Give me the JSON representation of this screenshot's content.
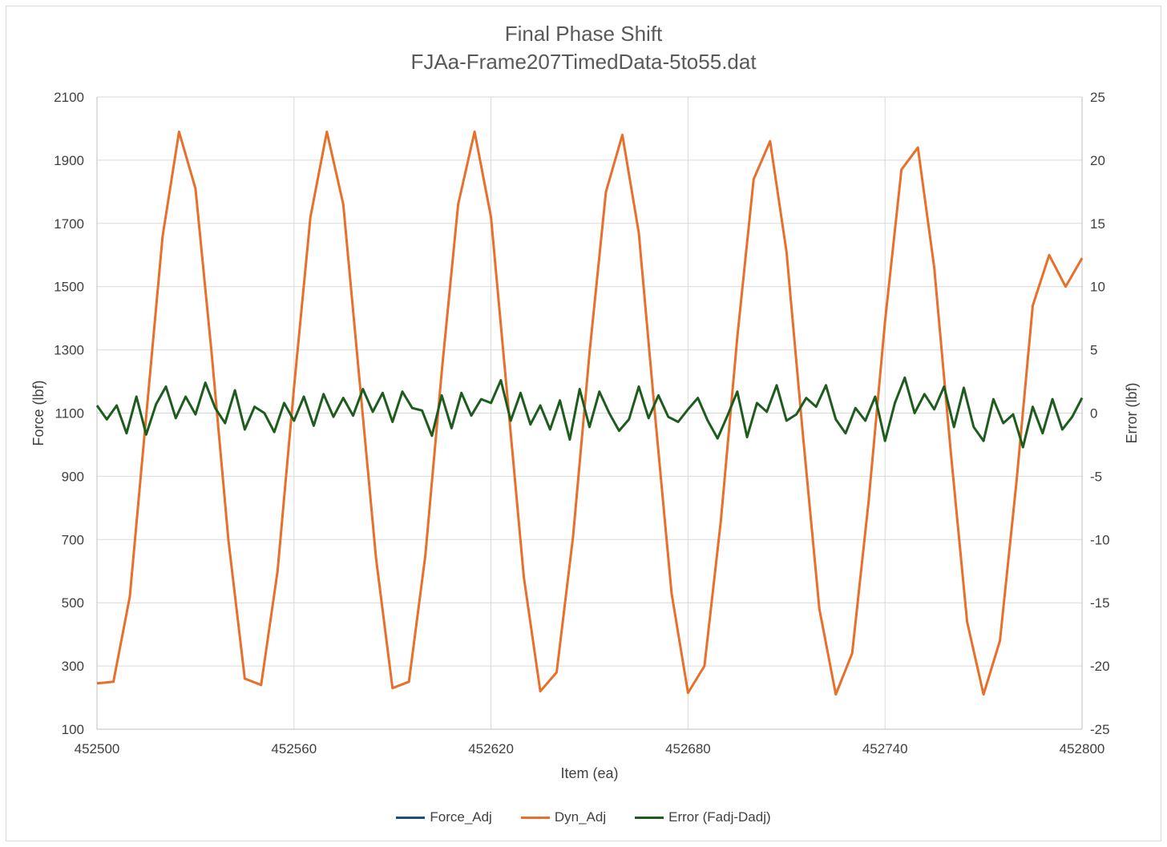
{
  "chart_data": {
    "type": "line",
    "title": "Final Phase Shift",
    "subtitle": "FJAa-Frame207TimedData-5to55.dat",
    "xlabel": "Item (ea)",
    "ylabel": "Force (lbf)",
    "y2label": "Error (lbf)",
    "xlim": [
      452500,
      452800
    ],
    "ylim": [
      100,
      2100
    ],
    "y2lim": [
      -25,
      25
    ],
    "x_ticks": [
      "452500",
      "452560",
      "452620",
      "452680",
      "452740",
      "452800"
    ],
    "y_ticks": [
      "2100",
      "1900",
      "1700",
      "1500",
      "1300",
      "1100",
      "900",
      "700",
      "500",
      "300",
      "100"
    ],
    "y2_ticks": [
      "25",
      "20",
      "15",
      "10",
      "5",
      "0",
      "-5",
      "-10",
      "-15",
      "-20",
      "-25"
    ],
    "grid": "vertical and horizontal",
    "legend_position": "bottom",
    "series": [
      {
        "name": "Force_Adj",
        "axis": "left",
        "color": "#1f4e79",
        "x": [
          452500,
          452505,
          452510,
          452515,
          452520,
          452525,
          452530,
          452535,
          452540,
          452545,
          452550,
          452555,
          452560,
          452565,
          452570,
          452575,
          452580,
          452585,
          452590,
          452595,
          452600,
          452605,
          452610,
          452615,
          452620,
          452625,
          452630,
          452635,
          452640,
          452645,
          452650,
          452655,
          452660,
          452665,
          452670,
          452675,
          452680,
          452685,
          452690,
          452695,
          452700,
          452705,
          452710,
          452715,
          452720,
          452725,
          452730,
          452735,
          452740,
          452745,
          452750,
          452755,
          452760,
          452765,
          452770,
          452775,
          452780,
          452785,
          452790,
          452795,
          452800
        ],
        "values": [
          245,
          250,
          520,
          1090,
          1660,
          1990,
          1810,
          1280,
          700,
          260,
          240,
          600,
          1180,
          1720,
          1990,
          1760,
          1200,
          640,
          230,
          250,
          650,
          1230,
          1760,
          1990,
          1720,
          1150,
          580,
          220,
          280,
          710,
          1290,
          1800,
          1980,
          1670,
          1090,
          530,
          215,
          300,
          760,
          1340,
          1840,
          1960,
          1610,
          1030,
          480,
          210,
          340,
          820,
          1390,
          1870,
          1940,
          1560,
          980,
          440,
          210,
          380,
          880,
          1440,
          1600,
          1500,
          1590
        ]
      },
      {
        "name": "Dyn_Adj",
        "axis": "left",
        "color": "#e8702a",
        "x": [
          452500,
          452505,
          452510,
          452515,
          452520,
          452525,
          452530,
          452535,
          452540,
          452545,
          452550,
          452555,
          452560,
          452565,
          452570,
          452575,
          452580,
          452585,
          452590,
          452595,
          452600,
          452605,
          452610,
          452615,
          452620,
          452625,
          452630,
          452635,
          452640,
          452645,
          452650,
          452655,
          452660,
          452665,
          452670,
          452675,
          452680,
          452685,
          452690,
          452695,
          452700,
          452705,
          452710,
          452715,
          452720,
          452725,
          452730,
          452735,
          452740,
          452745,
          452750,
          452755,
          452760,
          452765,
          452770,
          452775,
          452780,
          452785,
          452790,
          452795,
          452800
        ],
        "values": [
          245,
          250,
          520,
          1090,
          1660,
          1990,
          1810,
          1280,
          700,
          260,
          240,
          600,
          1180,
          1720,
          1990,
          1760,
          1200,
          640,
          230,
          250,
          650,
          1230,
          1760,
          1990,
          1720,
          1150,
          580,
          220,
          280,
          710,
          1290,
          1800,
          1980,
          1670,
          1090,
          530,
          215,
          300,
          760,
          1340,
          1840,
          1960,
          1610,
          1030,
          480,
          210,
          340,
          820,
          1390,
          1870,
          1940,
          1560,
          980,
          440,
          210,
          380,
          880,
          1440,
          1600,
          1500,
          1590
        ]
      },
      {
        "name": "Error (Fadj-Dadj)",
        "axis": "right",
        "color": "#1e5c1e",
        "x": [
          452500,
          452503,
          452506,
          452509,
          452512,
          452515,
          452518,
          452521,
          452524,
          452527,
          452530,
          452533,
          452536,
          452539,
          452542,
          452545,
          452548,
          452551,
          452554,
          452557,
          452560,
          452563,
          452566,
          452569,
          452572,
          452575,
          452578,
          452581,
          452584,
          452587,
          452590,
          452593,
          452596,
          452599,
          452602,
          452605,
          452608,
          452611,
          452614,
          452617,
          452620,
          452623,
          452626,
          452629,
          452632,
          452635,
          452638,
          452641,
          452644,
          452647,
          452650,
          452653,
          452656,
          452659,
          452662,
          452665,
          452668,
          452671,
          452674,
          452677,
          452680,
          452683,
          452686,
          452689,
          452692,
          452695,
          452698,
          452701,
          452704,
          452707,
          452710,
          452713,
          452716,
          452719,
          452722,
          452725,
          452728,
          452731,
          452734,
          452737,
          452740,
          452743,
          452746,
          452749,
          452752,
          452755,
          452758,
          452761,
          452764,
          452767,
          452770,
          452773,
          452776,
          452779,
          452782,
          452785,
          452788,
          452791,
          452794,
          452797,
          452800
        ],
        "values": [
          0.6,
          -0.5,
          0.6,
          -1.6,
          1.3,
          -1.7,
          0.7,
          2.1,
          -0.4,
          1.3,
          -0.1,
          2.4,
          0.4,
          -0.8,
          1.8,
          -1.3,
          0.5,
          0,
          -1.5,
          0.8,
          -0.6,
          1.3,
          -1.0,
          1.5,
          -0.3,
          1.2,
          -0.2,
          1.9,
          0.1,
          1.6,
          -0.7,
          1.7,
          0.4,
          0.2,
          -1.8,
          1.4,
          -1.2,
          1.6,
          -0.2,
          1.1,
          0.8,
          2.6,
          -0.6,
          1.6,
          -0.9,
          0.6,
          -1.3,
          1.0,
          -2.1,
          1.9,
          -1.1,
          1.7,
          0.0,
          -1.4,
          -0.5,
          2.1,
          -0.4,
          1.4,
          -0.3,
          -0.7,
          0.3,
          1.2,
          -0.6,
          -2.0,
          -0.2,
          1.7,
          -1.9,
          0.8,
          0.1,
          2.2,
          -0.6,
          -0.1,
          1.2,
          0.5,
          2.2,
          -0.5,
          -1.6,
          0.4,
          -0.6,
          1.3,
          -2.2,
          0.8,
          2.8,
          0.0,
          1.5,
          0.3,
          2.1,
          -1.1,
          2.0,
          -1.1,
          -2.2,
          1.1,
          -0.8,
          -0.1,
          -2.7,
          0.5,
          -1.6,
          1.1,
          -1.3,
          -0.3,
          1.2
        ]
      }
    ]
  }
}
